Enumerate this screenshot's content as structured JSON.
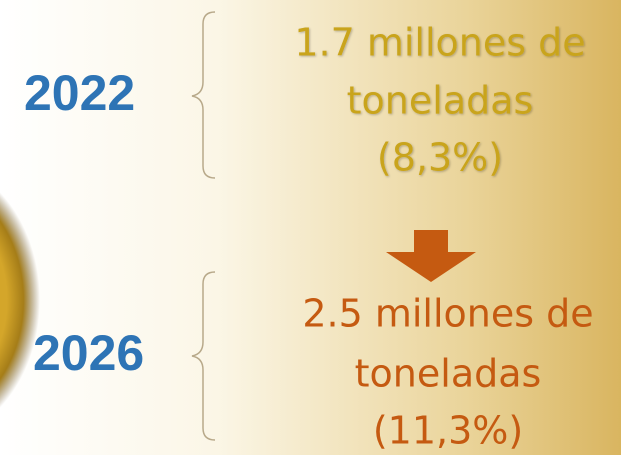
{
  "items": [
    {
      "year": "2022",
      "lines": [
        "1.7 millones de",
        "toneladas",
        "(8,3%)"
      ]
    },
    {
      "year": "2026",
      "lines": [
        "2.5 millones de",
        "toneladas",
        "(11,3%)"
      ]
    }
  ]
}
